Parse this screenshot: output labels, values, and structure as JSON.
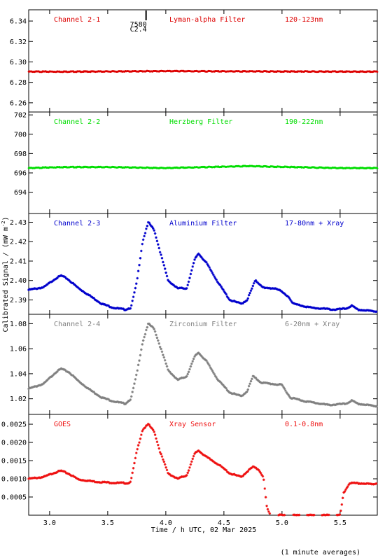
{
  "chart_data": {
    "type": "scatter",
    "xlabel": "Time / h UTC, 02 Mar 2025",
    "ylabel_text": "Calibrated Signal / (mW m",
    "ylabel_sup": "-2",
    "ylabel_close": ")",
    "footnote": "(1 minute averages)",
    "xlim": [
      2.82,
      5.82
    ],
    "xticks": [
      3.0,
      3.5,
      4.0,
      4.5,
      5.0,
      5.5
    ],
    "xtick_labels": [
      "3.0",
      "3.5",
      "4.0",
      "4.5",
      "5.0",
      "5.5"
    ],
    "event_marker": {
      "x": 3.83,
      "label1": "7580",
      "label2": "C2.4"
    },
    "panels": [
      {
        "name": "Channel 2-1",
        "filter": "Lyman-alpha Filter",
        "range": "120-123nm",
        "color": "#dd0000",
        "ylim": [
          6.251,
          6.351
        ],
        "yticks": [
          6.26,
          6.28,
          6.3,
          6.32,
          6.34
        ],
        "ytick_labels": [
          "6.26",
          "6.28",
          "6.30",
          "6.32",
          "6.34"
        ],
        "series": [
          {
            "x": 2.82,
            "y": 6.2905
          },
          {
            "x": 3.2,
            "y": 6.2905
          },
          {
            "x": 3.6,
            "y": 6.2907
          },
          {
            "x": 4.0,
            "y": 6.291
          },
          {
            "x": 4.4,
            "y": 6.2908
          },
          {
            "x": 4.8,
            "y": 6.2907
          },
          {
            "x": 5.2,
            "y": 6.2906
          },
          {
            "x": 5.6,
            "y": 6.2905
          },
          {
            "x": 5.82,
            "y": 6.2905
          }
        ]
      },
      {
        "name": "Channel 2-2",
        "filter": "Herzberg Filter",
        "range": "190-222nm",
        "color": "#00dd00",
        "ylim": [
          691.8,
          702.3
        ],
        "yticks": [
          694,
          696,
          698,
          700,
          702
        ],
        "ytick_labels": [
          "694",
          "696",
          "698",
          "700",
          "702"
        ],
        "series": [
          {
            "x": 2.82,
            "y": 696.5
          },
          {
            "x": 3.1,
            "y": 696.6
          },
          {
            "x": 3.5,
            "y": 696.6
          },
          {
            "x": 4.0,
            "y": 696.5
          },
          {
            "x": 4.7,
            "y": 696.7
          },
          {
            "x": 5.1,
            "y": 696.6
          },
          {
            "x": 5.5,
            "y": 696.5
          },
          {
            "x": 5.82,
            "y": 696.5
          }
        ]
      },
      {
        "name": "Channel 2-3",
        "filter": "Aluminium Filter",
        "range": "17-80nm + Xray",
        "color": "#0000cc",
        "ylim": [
          2.3826,
          2.4345
        ],
        "yticks": [
          2.39,
          2.4,
          2.41,
          2.42,
          2.43
        ],
        "ytick_labels": [
          "2.39",
          "2.40",
          "2.41",
          "2.42",
          "2.43"
        ],
        "series": [
          {
            "x": 2.82,
            "y": 2.3952
          },
          {
            "x": 2.95,
            "y": 2.3965
          },
          {
            "x": 3.05,
            "y": 2.401
          },
          {
            "x": 3.1,
            "y": 2.4025
          },
          {
            "x": 3.15,
            "y": 2.401
          },
          {
            "x": 3.25,
            "y": 2.396
          },
          {
            "x": 3.35,
            "y": 2.392
          },
          {
            "x": 3.45,
            "y": 2.388
          },
          {
            "x": 3.55,
            "y": 2.386
          },
          {
            "x": 3.65,
            "y": 2.385
          },
          {
            "x": 3.7,
            "y": 2.386
          },
          {
            "x": 3.75,
            "y": 2.399
          },
          {
            "x": 3.8,
            "y": 2.42
          },
          {
            "x": 3.85,
            "y": 2.43
          },
          {
            "x": 3.9,
            "y": 2.426
          },
          {
            "x": 3.95,
            "y": 2.415
          },
          {
            "x": 4.02,
            "y": 2.4
          },
          {
            "x": 4.1,
            "y": 2.396
          },
          {
            "x": 4.18,
            "y": 2.396
          },
          {
            "x": 4.25,
            "y": 2.411
          },
          {
            "x": 4.28,
            "y": 2.414
          },
          {
            "x": 4.35,
            "y": 2.409
          },
          {
            "x": 4.45,
            "y": 2.399
          },
          {
            "x": 4.55,
            "y": 2.39
          },
          {
            "x": 4.65,
            "y": 2.388
          },
          {
            "x": 4.7,
            "y": 2.39
          },
          {
            "x": 4.77,
            "y": 2.4
          },
          {
            "x": 4.85,
            "y": 2.396
          },
          {
            "x": 4.95,
            "y": 2.396
          },
          {
            "x": 5.05,
            "y": 2.392
          },
          {
            "x": 5.1,
            "y": 2.388
          },
          {
            "x": 5.25,
            "y": 2.386
          },
          {
            "x": 5.45,
            "y": 2.385
          },
          {
            "x": 5.55,
            "y": 2.3855
          },
          {
            "x": 5.6,
            "y": 2.387
          },
          {
            "x": 5.65,
            "y": 2.385
          },
          {
            "x": 5.82,
            "y": 2.384
          }
        ]
      },
      {
        "name": "Channel 2-4",
        "filter": "Zirconium Filter",
        "range": "6-20nm + Xray",
        "color": "#808080",
        "ylim": [
          1.0075,
          1.0875
        ],
        "yticks": [
          1.02,
          1.04,
          1.06,
          1.08
        ],
        "ytick_labels": [
          "1.02",
          "1.04",
          "1.06",
          "1.08"
        ],
        "series": [
          {
            "x": 2.82,
            "y": 1.028
          },
          {
            "x": 2.95,
            "y": 1.032
          },
          {
            "x": 3.05,
            "y": 1.041
          },
          {
            "x": 3.1,
            "y": 1.044
          },
          {
            "x": 3.17,
            "y": 1.041
          },
          {
            "x": 3.25,
            "y": 1.034
          },
          {
            "x": 3.35,
            "y": 1.027
          },
          {
            "x": 3.45,
            "y": 1.021
          },
          {
            "x": 3.55,
            "y": 1.018
          },
          {
            "x": 3.65,
            "y": 1.016
          },
          {
            "x": 3.7,
            "y": 1.02
          },
          {
            "x": 3.75,
            "y": 1.04
          },
          {
            "x": 3.8,
            "y": 1.065
          },
          {
            "x": 3.85,
            "y": 1.08
          },
          {
            "x": 3.9,
            "y": 1.076
          },
          {
            "x": 3.95,
            "y": 1.062
          },
          {
            "x": 4.02,
            "y": 1.043
          },
          {
            "x": 4.1,
            "y": 1.035
          },
          {
            "x": 4.18,
            "y": 1.038
          },
          {
            "x": 4.25,
            "y": 1.054
          },
          {
            "x": 4.28,
            "y": 1.057
          },
          {
            "x": 4.35,
            "y": 1.05
          },
          {
            "x": 4.45,
            "y": 1.035
          },
          {
            "x": 4.55,
            "y": 1.025
          },
          {
            "x": 4.65,
            "y": 1.022
          },
          {
            "x": 4.7,
            "y": 1.026
          },
          {
            "x": 4.75,
            "y": 1.038
          },
          {
            "x": 4.82,
            "y": 1.033
          },
          {
            "x": 4.9,
            "y": 1.032
          },
          {
            "x": 5.0,
            "y": 1.031
          },
          {
            "x": 5.07,
            "y": 1.021
          },
          {
            "x": 5.2,
            "y": 1.018
          },
          {
            "x": 5.4,
            "y": 1.015
          },
          {
            "x": 5.55,
            "y": 1.016
          },
          {
            "x": 5.6,
            "y": 1.0185
          },
          {
            "x": 5.65,
            "y": 1.016
          },
          {
            "x": 5.82,
            "y": 1.014
          }
        ]
      },
      {
        "name": "GOES",
        "filter": "Xray Sensor",
        "range": "0.1-0.8nm",
        "color": "#ee1111",
        "ylim": [
          0.0,
          0.00277
        ],
        "yticks": [
          0.0005,
          0.001,
          0.0015,
          0.002,
          0.0025
        ],
        "ytick_labels": [
          "0.0005",
          "0.0010",
          "0.0015",
          "0.0020",
          "0.0025"
        ],
        "series": [
          {
            "x": 2.82,
            "y": 0.001
          },
          {
            "x": 2.95,
            "y": 0.00105
          },
          {
            "x": 3.05,
            "y": 0.00118
          },
          {
            "x": 3.1,
            "y": 0.00122
          },
          {
            "x": 3.17,
            "y": 0.00113
          },
          {
            "x": 3.25,
            "y": 0.00098
          },
          {
            "x": 3.4,
            "y": 0.00092
          },
          {
            "x": 3.55,
            "y": 0.00089
          },
          {
            "x": 3.68,
            "y": 0.00088
          },
          {
            "x": 3.7,
            "y": 0.00095
          },
          {
            "x": 3.75,
            "y": 0.00175
          },
          {
            "x": 3.8,
            "y": 0.00235
          },
          {
            "x": 3.85,
            "y": 0.0025
          },
          {
            "x": 3.9,
            "y": 0.0023
          },
          {
            "x": 3.95,
            "y": 0.00175
          },
          {
            "x": 4.02,
            "y": 0.00115
          },
          {
            "x": 4.1,
            "y": 0.001
          },
          {
            "x": 4.18,
            "y": 0.0011
          },
          {
            "x": 4.25,
            "y": 0.0017
          },
          {
            "x": 4.28,
            "y": 0.00178
          },
          {
            "x": 4.35,
            "y": 0.0016
          },
          {
            "x": 4.45,
            "y": 0.0014
          },
          {
            "x": 4.55,
            "y": 0.00115
          },
          {
            "x": 4.65,
            "y": 0.00105
          },
          {
            "x": 4.7,
            "y": 0.0012
          },
          {
            "x": 4.75,
            "y": 0.00133
          },
          {
            "x": 4.8,
            "y": 0.00125
          },
          {
            "x": 4.84,
            "y": 0.00105
          },
          {
            "x": 4.87,
            "y": 0.0002
          },
          {
            "x": 4.9,
            "y": 0.0
          },
          {
            "x": 5.2,
            "y": 0.0
          },
          {
            "x": 5.5,
            "y": 0.0
          },
          {
            "x": 5.53,
            "y": 0.0006
          },
          {
            "x": 5.58,
            "y": 0.00088
          },
          {
            "x": 5.7,
            "y": 0.00087
          },
          {
            "x": 5.78,
            "y": 0.00085
          },
          {
            "x": 5.82,
            "y": 0.00088
          }
        ]
      }
    ]
  }
}
